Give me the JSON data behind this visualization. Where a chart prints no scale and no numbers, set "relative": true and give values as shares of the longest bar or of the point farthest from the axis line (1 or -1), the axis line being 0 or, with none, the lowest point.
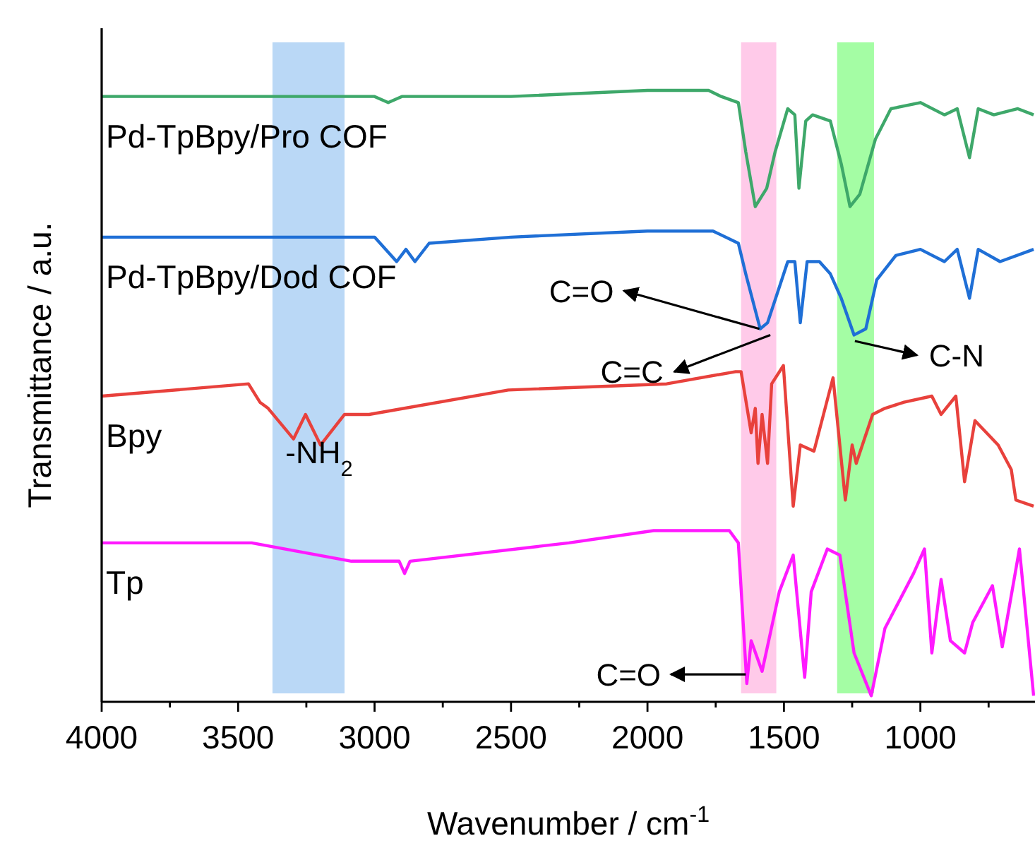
{
  "chart_data": {
    "type": "line",
    "relative": true,
    "xlabel": "Wavenumber / cm$^{-1}$",
    "ylabel": "Transmittance / a.u.",
    "xlim": [
      4000,
      580
    ],
    "xticks": [
      4000,
      {
        "value": 3750,
        "label": null
      },
      3500,
      {
        "value": 3250,
        "label": null
      },
      3000,
      {
        "value": 2750,
        "label": null
      },
      2500,
      {
        "value": 2250,
        "label": null
      },
      2000,
      {
        "value": 1750,
        "label": null
      },
      1500,
      {
        "value": 1250,
        "label": null
      },
      1000,
      {
        "value": 750,
        "label": null
      }
    ],
    "grid": false,
    "marker": "none",
    "line_style": "solid",
    "bands": [
      {
        "axis": "x",
        "from": 1657,
        "to": 1528,
        "color": "#ffb3e0"
      },
      {
        "axis": "x",
        "from": 1305,
        "to": 1170,
        "color": "#7dfc7d"
      },
      {
        "axis": "x",
        "from": 3374,
        "to": 3110,
        "color": "#9cc8f2"
      }
    ],
    "annotations": [
      {
        "text": "C=O",
        "x": 1590,
        "y": 0.61
      },
      {
        "text": "C=C",
        "x": 1550,
        "y": 0.6
      },
      {
        "text": "C-N",
        "x": 1240,
        "y": 0.59
      },
      {
        "text": "C=O",
        "x": 1640,
        "y": 0.045
      },
      "-NH$_{2}$"
    ],
    "series": [
      {
        "name": "Pd-TpBpy/Pro COF",
        "color": "#3ea86a",
        "x": [
          4000,
          3500,
          3000,
          2950,
          2900,
          2500,
          2000,
          1776,
          1730,
          1667,
          1640,
          1605,
          1563,
          1532,
          1486,
          1460,
          1445,
          1420,
          1395,
          1330,
          1290,
          1258,
          1222,
          1165,
          1108,
          1000,
          912,
          865,
          820,
          788,
          731,
          643,
          585
        ],
        "values": [
          0.99,
          0.99,
          0.99,
          0.98,
          0.99,
          0.99,
          1.0,
          1.0,
          0.99,
          0.98,
          0.9,
          0.81,
          0.84,
          0.9,
          0.97,
          0.96,
          0.84,
          0.95,
          0.96,
          0.95,
          0.88,
          0.81,
          0.83,
          0.92,
          0.97,
          0.98,
          0.96,
          0.97,
          0.89,
          0.97,
          0.96,
          0.97,
          0.96
        ]
      },
      {
        "name": "Pd-TpBpy/Dod COF",
        "color": "#1f6fd6",
        "x": [
          4000,
          3500,
          3000,
          2919,
          2885,
          2852,
          2800,
          2500,
          2000,
          1760,
          1667,
          1640,
          1587,
          1560,
          1486,
          1460,
          1440,
          1415,
          1370,
          1330,
          1290,
          1243,
          1200,
          1160,
          1090,
          1000,
          912,
          865,
          820,
          788,
          708,
          585
        ],
        "values": [
          0.76,
          0.76,
          0.76,
          0.72,
          0.74,
          0.72,
          0.75,
          0.76,
          0.77,
          0.77,
          0.75,
          0.7,
          0.61,
          0.62,
          0.72,
          0.72,
          0.62,
          0.72,
          0.72,
          0.7,
          0.66,
          0.6,
          0.61,
          0.69,
          0.73,
          0.74,
          0.72,
          0.74,
          0.66,
          0.74,
          0.72,
          0.74
        ]
      },
      {
        "name": "Bpy",
        "color": "#e8413c",
        "x": [
          4000,
          3462,
          3420,
          3390,
          3297,
          3253,
          3198,
          3110,
          3020,
          2510,
          1930,
          1677,
          1657,
          1620,
          1605,
          1595,
          1580,
          1560,
          1545,
          1502,
          1466,
          1440,
          1390,
          1320,
          1275,
          1250,
          1235,
          1175,
          1130,
          1060,
          958,
          924,
          870,
          838,
          800,
          715,
          667,
          650,
          585
        ],
        "values": [
          0.5,
          0.52,
          0.49,
          0.48,
          0.43,
          0.47,
          0.42,
          0.47,
          0.47,
          0.51,
          0.52,
          0.54,
          0.54,
          0.44,
          0.48,
          0.39,
          0.47,
          0.39,
          0.52,
          0.55,
          0.32,
          0.42,
          0.41,
          0.53,
          0.33,
          0.42,
          0.39,
          0.47,
          0.48,
          0.49,
          0.5,
          0.47,
          0.5,
          0.36,
          0.46,
          0.42,
          0.38,
          0.33,
          0.32
        ]
      },
      {
        "name": "Tp",
        "color": "#ff1aff",
        "x": [
          4000,
          3450,
          3085,
          2910,
          2890,
          2870,
          2288,
          1977,
          1700,
          1667,
          1636,
          1620,
          1580,
          1517,
          1466,
          1424,
          1400,
          1341,
          1295,
          1243,
          1180,
          1130,
          1025,
          985,
          958,
          924,
          890,
          838,
          808,
          736,
          700,
          637,
          585
        ],
        "values": [
          0.26,
          0.26,
          0.23,
          0.23,
          0.21,
          0.23,
          0.26,
          0.28,
          0.28,
          0.26,
          0.03,
          0.1,
          0.05,
          0.18,
          0.24,
          0.04,
          0.18,
          0.25,
          0.24,
          0.08,
          0.01,
          0.12,
          0.21,
          0.25,
          0.08,
          0.2,
          0.1,
          0.08,
          0.13,
          0.19,
          0.09,
          0.25,
          0.01
        ]
      }
    ]
  }
}
